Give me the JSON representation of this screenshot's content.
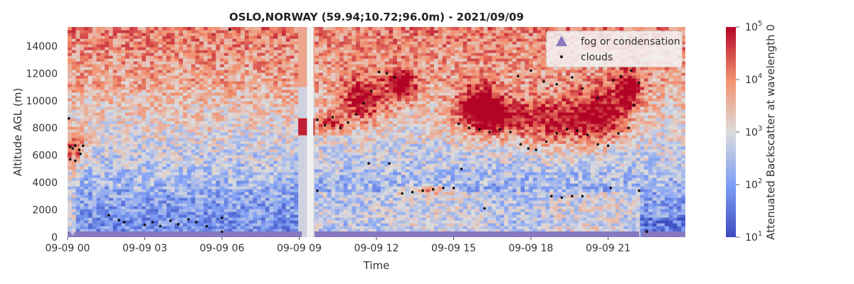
{
  "chart_data": {
    "type": "heatmap",
    "title": "OSLO,NORWAY (59.94;10.72;96.0m) - 2021/09/09",
    "xlabel": "Time",
    "ylabel": "Altitude AGL (m)",
    "xlim": [
      0,
      24
    ],
    "ylim": [
      0,
      15400
    ],
    "x_ticks": [
      {
        "value": 0,
        "label": "09-09 00"
      },
      {
        "value": 3,
        "label": "09-09 03"
      },
      {
        "value": 6,
        "label": "09-09 06"
      },
      {
        "value": 9,
        "label": "09-09 09"
      },
      {
        "value": 12,
        "label": "09-09 12"
      },
      {
        "value": 15,
        "label": "09-09 15"
      },
      {
        "value": 18,
        "label": "09-09 18"
      },
      {
        "value": 21,
        "label": "09-09 21"
      }
    ],
    "y_ticks": [
      0,
      2000,
      4000,
      6000,
      8000,
      10000,
      12000,
      14000
    ],
    "colorbar": {
      "label": "Attenuated Backscatter at wavelength 0",
      "scale": "log",
      "range": [
        10,
        100000
      ],
      "ticks": [
        {
          "base": "10",
          "exp": "5"
        },
        {
          "base": "10",
          "exp": "4"
        },
        {
          "base": "10",
          "exp": "3"
        },
        {
          "base": "10",
          "exp": "2"
        },
        {
          "base": "10",
          "exp": "1"
        }
      ],
      "colormap": "coolwarm"
    },
    "legend": {
      "placement": "top-right",
      "entries": [
        {
          "label": "fog or condensation",
          "marker": "triangle",
          "color": "#8878c0"
        },
        {
          "label": "clouds",
          "marker": "dot",
          "color": "#111111"
        }
      ]
    },
    "data_gap_hours": [
      9.3,
      9.55
    ],
    "fog_intervals_hours": [
      [
        0,
        9.1
      ],
      [
        9.6,
        22.2
      ],
      [
        22.3,
        24
      ]
    ],
    "cloud_points": [
      {
        "t": 0.1,
        "alt": 6600
      },
      {
        "t": 0.2,
        "alt": 6500
      },
      {
        "t": 0.3,
        "alt": 6700
      },
      {
        "t": 0.45,
        "alt": 6400
      },
      {
        "t": 0.1,
        "alt": 5700
      },
      {
        "t": 0.3,
        "alt": 5600
      },
      {
        "t": 0.5,
        "alt": 6100
      },
      {
        "t": 0.05,
        "alt": 8700
      },
      {
        "t": 0.6,
        "alt": 6700
      },
      {
        "t": 1.6,
        "alt": 1600
      },
      {
        "t": 2.0,
        "alt": 1250
      },
      {
        "t": 2.2,
        "alt": 1100
      },
      {
        "t": 3.0,
        "alt": 900
      },
      {
        "t": 3.3,
        "alt": 1100
      },
      {
        "t": 3.6,
        "alt": 800
      },
      {
        "t": 4.0,
        "alt": 1200
      },
      {
        "t": 4.3,
        "alt": 950
      },
      {
        "t": 4.7,
        "alt": 1300
      },
      {
        "t": 5.0,
        "alt": 1100
      },
      {
        "t": 5.4,
        "alt": 800
      },
      {
        "t": 6.0,
        "alt": 1400
      },
      {
        "t": 6.3,
        "alt": 15200
      },
      {
        "t": 6.0,
        "alt": 400
      },
      {
        "t": 9.7,
        "alt": 8600
      },
      {
        "t": 10.0,
        "alt": 8200
      },
      {
        "t": 10.3,
        "alt": 8800
      },
      {
        "t": 10.6,
        "alt": 8000
      },
      {
        "t": 10.9,
        "alt": 8400
      },
      {
        "t": 11.2,
        "alt": 9000
      },
      {
        "t": 11.5,
        "alt": 9800
      },
      {
        "t": 11.8,
        "alt": 10700
      },
      {
        "t": 12.1,
        "alt": 12100
      },
      {
        "t": 12.4,
        "alt": 12000
      },
      {
        "t": 12.7,
        "alt": 11700
      },
      {
        "t": 11.7,
        "alt": 5400
      },
      {
        "t": 12.5,
        "alt": 5400
      },
      {
        "t": 9.7,
        "alt": 3400
      },
      {
        "t": 13.0,
        "alt": 3200
      },
      {
        "t": 13.4,
        "alt": 3300
      },
      {
        "t": 13.8,
        "alt": 3400
      },
      {
        "t": 14.2,
        "alt": 3500
      },
      {
        "t": 14.6,
        "alt": 3600
      },
      {
        "t": 15.0,
        "alt": 3600
      },
      {
        "t": 15.3,
        "alt": 5000
      },
      {
        "t": 15.2,
        "alt": 8300
      },
      {
        "t": 15.6,
        "alt": 8000
      },
      {
        "t": 16.0,
        "alt": 7900
      },
      {
        "t": 16.4,
        "alt": 7700
      },
      {
        "t": 16.8,
        "alt": 7900
      },
      {
        "t": 17.2,
        "alt": 7700
      },
      {
        "t": 17.6,
        "alt": 6800
      },
      {
        "t": 17.9,
        "alt": 6500
      },
      {
        "t": 18.2,
        "alt": 6400
      },
      {
        "t": 18.6,
        "alt": 7000
      },
      {
        "t": 19.0,
        "alt": 7600
      },
      {
        "t": 19.4,
        "alt": 7900
      },
      {
        "t": 19.8,
        "alt": 7800
      },
      {
        "t": 20.2,
        "alt": 7500
      },
      {
        "t": 20.6,
        "alt": 6800
      },
      {
        "t": 21.0,
        "alt": 6700
      },
      {
        "t": 21.4,
        "alt": 7600
      },
      {
        "t": 21.8,
        "alt": 8000
      },
      {
        "t": 18.0,
        "alt": 12200
      },
      {
        "t": 17.5,
        "alt": 11800
      },
      {
        "t": 18.5,
        "alt": 11400
      },
      {
        "t": 19.0,
        "alt": 11200
      },
      {
        "t": 19.6,
        "alt": 11700
      },
      {
        "t": 20.0,
        "alt": 10900
      },
      {
        "t": 20.6,
        "alt": 10200
      },
      {
        "t": 21.2,
        "alt": 11500
      },
      {
        "t": 21.5,
        "alt": 11800
      },
      {
        "t": 21.9,
        "alt": 12200
      },
      {
        "t": 22.2,
        "alt": 11300
      },
      {
        "t": 22.0,
        "alt": 9700
      },
      {
        "t": 18.8,
        "alt": 3000
      },
      {
        "t": 19.2,
        "alt": 2900
      },
      {
        "t": 19.6,
        "alt": 3000
      },
      {
        "t": 20.0,
        "alt": 3000
      },
      {
        "t": 21.1,
        "alt": 3600
      },
      {
        "t": 22.5,
        "alt": 400
      },
      {
        "t": 22.2,
        "alt": 3400
      },
      {
        "t": 16.2,
        "alt": 2100
      }
    ]
  }
}
